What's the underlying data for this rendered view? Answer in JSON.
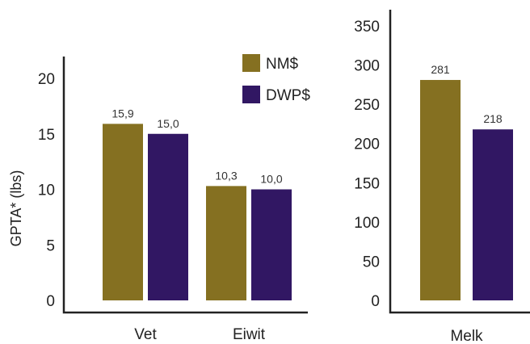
{
  "chart_data": [
    {
      "type": "bar",
      "categories": [
        "Vet",
        "Eiwit"
      ],
      "series": [
        {
          "name": "NM$",
          "values": [
            15.9,
            10.3
          ],
          "labels": [
            "15,9",
            "10,3"
          ]
        },
        {
          "name": "DWP$",
          "values": [
            15.0,
            10.0
          ],
          "labels": [
            "15,0",
            "10,0"
          ]
        }
      ],
      "ylabel": "GPTA* (lbs)",
      "ylim": [
        0,
        20
      ],
      "yticks": [
        "0",
        "5",
        "10",
        "15",
        "20"
      ],
      "legend": "top-right",
      "grid": false
    },
    {
      "type": "bar",
      "categories": [
        "Melk"
      ],
      "series": [
        {
          "name": "NM$",
          "values": [
            281
          ],
          "labels": [
            "281"
          ]
        },
        {
          "name": "DWP$",
          "values": [
            218
          ],
          "labels": [
            "218"
          ]
        }
      ],
      "ylim": [
        0,
        350
      ],
      "yticks": [
        "0",
        "50",
        "100",
        "150",
        "200",
        "250",
        "300",
        "350"
      ],
      "grid": false
    }
  ],
  "colors": {
    "NM$": "#857021",
    "DWP$": "#311763"
  }
}
